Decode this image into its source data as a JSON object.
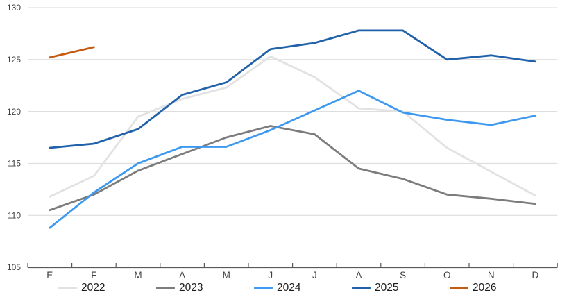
{
  "chart_data": {
    "type": "line",
    "title": "",
    "xlabel": "",
    "ylabel": "",
    "categories": [
      "E",
      "F",
      "M",
      "A",
      "M",
      "J",
      "J",
      "A",
      "S",
      "O",
      "N",
      "D"
    ],
    "ylim": [
      105,
      130
    ],
    "ytick_step": 5,
    "ytick_labels": [
      "105",
      "110",
      "115",
      "120",
      "125",
      "130"
    ],
    "grid": true,
    "legend_position": "bottom",
    "series": [
      {
        "name": "2022",
        "color": "#E2E2E2",
        "values": [
          111.8,
          113.8,
          119.5,
          121.2,
          122.3,
          125.3,
          123.3,
          120.3,
          120.0,
          116.5,
          114.2,
          111.9
        ]
      },
      {
        "name": "2023",
        "color": "#7C7C7C",
        "values": [
          110.5,
          112.0,
          114.3,
          115.9,
          117.5,
          118.6,
          117.8,
          114.5,
          113.5,
          112.0,
          111.6,
          111.1
        ]
      },
      {
        "name": "2024",
        "color": "#3D99F0",
        "values": [
          108.8,
          112.2,
          115.0,
          116.6,
          116.6,
          118.2,
          120.1,
          122.0,
          119.9,
          119.2,
          118.7,
          119.6
        ]
      },
      {
        "name": "2025",
        "color": "#2161A9",
        "values": [
          116.5,
          116.9,
          118.3,
          121.6,
          122.8,
          126.0,
          126.6,
          127.8,
          127.8,
          125.0,
          125.4,
          124.8
        ]
      },
      {
        "name": "2026",
        "color": "#C55A11",
        "values": [
          125.2,
          126.2,
          null,
          null,
          null,
          null,
          null,
          null,
          null,
          null,
          null,
          null
        ]
      }
    ],
    "colors": {
      "grid": "#D9D9D9",
      "axis": "#595959",
      "tick_label": "#404040",
      "legend_text": "#1a1a1a",
      "background": "#FFFFFF"
    }
  }
}
